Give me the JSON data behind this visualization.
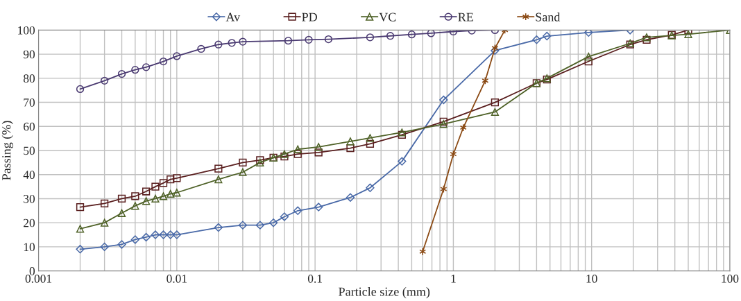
{
  "chart_data": {
    "type": "line",
    "xlabel": "Particle size (mm)",
    "ylabel": "Passing (%)",
    "log": "x",
    "xlim": [
      0.001,
      100
    ],
    "ylim": [
      0,
      100
    ],
    "xticks": [
      0.001,
      0.01,
      0.1,
      1,
      10,
      100
    ],
    "yticks": [
      0,
      10,
      20,
      30,
      40,
      50,
      60,
      70,
      80,
      90,
      100
    ],
    "grid": true,
    "legend": "top",
    "series": [
      {
        "name": "Av",
        "color": "#4a6aa8",
        "marker": "diamond",
        "x": [
          0.002,
          0.003,
          0.004,
          0.005,
          0.006,
          0.007,
          0.008,
          0.009,
          0.01,
          0.02,
          0.03,
          0.04,
          0.05,
          0.06,
          0.075,
          0.106,
          0.18,
          0.25,
          0.425,
          0.85,
          2,
          4,
          4.75,
          9.5,
          19
        ],
        "values": [
          9,
          10,
          11,
          13,
          14,
          15,
          15,
          15,
          15,
          18,
          19,
          19,
          20,
          22.5,
          25,
          26.5,
          30.5,
          34.5,
          45.5,
          71,
          91.5,
          96,
          97.5,
          99,
          100
        ]
      },
      {
        "name": "PD",
        "color": "#5a1f1f",
        "marker": "square",
        "x": [
          0.002,
          0.003,
          0.004,
          0.005,
          0.006,
          0.007,
          0.008,
          0.009,
          0.01,
          0.02,
          0.03,
          0.04,
          0.05,
          0.06,
          0.075,
          0.106,
          0.18,
          0.25,
          0.425,
          0.85,
          2,
          4,
          4.75,
          9.5,
          19,
          25,
          38,
          50
        ],
        "values": [
          26.5,
          28,
          30,
          31,
          33,
          35,
          36.5,
          38,
          38.5,
          42.5,
          45,
          46,
          47,
          47.5,
          48.5,
          49.2,
          51,
          52.8,
          56.5,
          62,
          70,
          78,
          79.5,
          87,
          94,
          96,
          98,
          100
        ]
      },
      {
        "name": "VC",
        "color": "#4f6228",
        "marker": "triangle",
        "x": [
          0.002,
          0.003,
          0.004,
          0.005,
          0.006,
          0.007,
          0.008,
          0.009,
          0.01,
          0.02,
          0.03,
          0.04,
          0.05,
          0.06,
          0.075,
          0.106,
          0.18,
          0.25,
          0.425,
          0.85,
          2,
          4,
          4.75,
          9.5,
          19,
          25,
          38,
          50,
          100
        ],
        "values": [
          17.5,
          20,
          24,
          27,
          29,
          30,
          31,
          32,
          32.5,
          38,
          41,
          45,
          47,
          48.5,
          50.5,
          51.5,
          53.8,
          55.2,
          57.5,
          61,
          66,
          78,
          80,
          89,
          94.5,
          97,
          97.8,
          98.3,
          100
        ]
      },
      {
        "name": "RE",
        "color": "#4b3b72",
        "marker": "circle",
        "x": [
          0.002,
          0.003,
          0.004,
          0.005,
          0.006,
          0.008,
          0.01,
          0.015,
          0.02,
          0.025,
          0.03,
          0.064,
          0.09,
          0.125,
          0.25,
          0.35,
          0.5,
          0.69,
          1,
          1.36,
          2
        ],
        "values": [
          75.5,
          79,
          81.8,
          83.5,
          84.6,
          87,
          89.2,
          92.2,
          94,
          94.7,
          95.2,
          95.6,
          96,
          96.2,
          97,
          97.6,
          98.2,
          98.7,
          99.4,
          99.8,
          100
        ]
      },
      {
        "name": "Sand",
        "color": "#8b4a14",
        "marker": "cross",
        "x": [
          0.6,
          0.85,
          1,
          1.18,
          1.7,
          2,
          2.36
        ],
        "values": [
          8,
          34,
          48.5,
          59.5,
          79,
          92.5,
          100
        ]
      }
    ]
  }
}
